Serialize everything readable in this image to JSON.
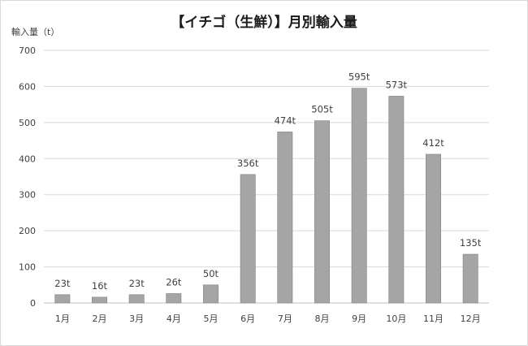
{
  "chart_data": {
    "type": "bar",
    "title": "【イチゴ（生鮮）】月別輸入量",
    "ylabel": "輸入量（t）",
    "xlabel": "",
    "ylim": [
      0,
      700
    ],
    "yticks": [
      0,
      100,
      200,
      300,
      400,
      500,
      600,
      700
    ],
    "grid": true,
    "legend": "none",
    "categories": [
      "1月",
      "2月",
      "3月",
      "4月",
      "5月",
      "6月",
      "7月",
      "8月",
      "9月",
      "10月",
      "11月",
      "12月"
    ],
    "values": [
      23,
      16,
      23,
      26,
      50,
      356,
      474,
      505,
      595,
      573,
      412,
      135
    ],
    "data_labels": [
      "23t",
      "16t",
      "23t",
      "26t",
      "50t",
      "356t",
      "474t",
      "505t",
      "595t",
      "573t",
      "412t",
      "135t"
    ],
    "colors": {
      "bar": "#a5a5a5",
      "bar_border": "#7f7f7f",
      "grid": "#d9d9d9"
    }
  }
}
